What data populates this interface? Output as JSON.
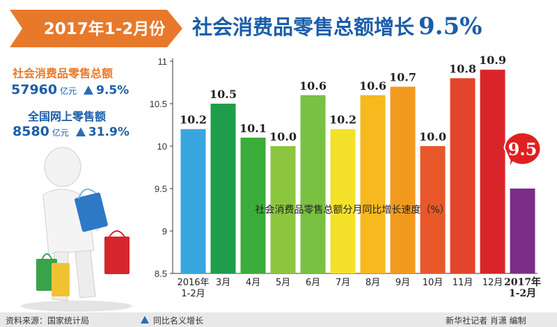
{
  "header": {
    "date_label": "2017年1-2月份",
    "title": "社会消费品零售总额增长",
    "title_growth": "9.5%",
    "arrow_color": "#e8792b",
    "title_color": "#1a5ea8"
  },
  "stats": [
    {
      "label": "社会消费品零售总额",
      "value": "57960",
      "unit": "亿元",
      "growth": "9.5%",
      "label_color": "#e8792b"
    },
    {
      "label": "全国网上零售额",
      "value": "8580",
      "unit": "亿元",
      "growth": "31.9%",
      "label_color": "#1a5ea8"
    }
  ],
  "chart_data": {
    "type": "bar",
    "title": "社会消费品零售总额分月同比增长速度（%）",
    "categories": [
      "2016年\n1-2月",
      "3月",
      "4月",
      "5月",
      "6月",
      "7月",
      "8月",
      "9月",
      "10月",
      "11月",
      "12月",
      "2017年\n1-2月"
    ],
    "values": [
      10.2,
      10.5,
      10.1,
      10.0,
      10.6,
      10.2,
      10.6,
      10.7,
      10.0,
      10.8,
      10.9,
      9.5
    ],
    "value_labels": [
      "10.2",
      "10.5",
      "10.1",
      "10.0",
      "10.6",
      "10.2",
      "10.6",
      "10.7",
      "10.0",
      "10.8",
      "10.9",
      "9.5"
    ],
    "colors": [
      "#3aa6e0",
      "#1e9e4a",
      "#3aad3a",
      "#8cc63f",
      "#79c143",
      "#f4e12a",
      "#f6b91e",
      "#f29a1e",
      "#e8582a",
      "#e2452b",
      "#d9252a",
      "#7b2d87"
    ],
    "ylim": [
      8.5,
      11
    ],
    "yticks": [
      "8.5",
      "9",
      "9.5",
      "10",
      "10.5",
      "11"
    ],
    "highlight_index": 11,
    "highlight_color": "#e02020",
    "grid": false,
    "xlabel": "",
    "ylabel": ""
  },
  "footer": {
    "source": "资料来源：国家统计局",
    "legend": "同比名义增长",
    "credit": "新华社记者 肖潇 编制"
  }
}
